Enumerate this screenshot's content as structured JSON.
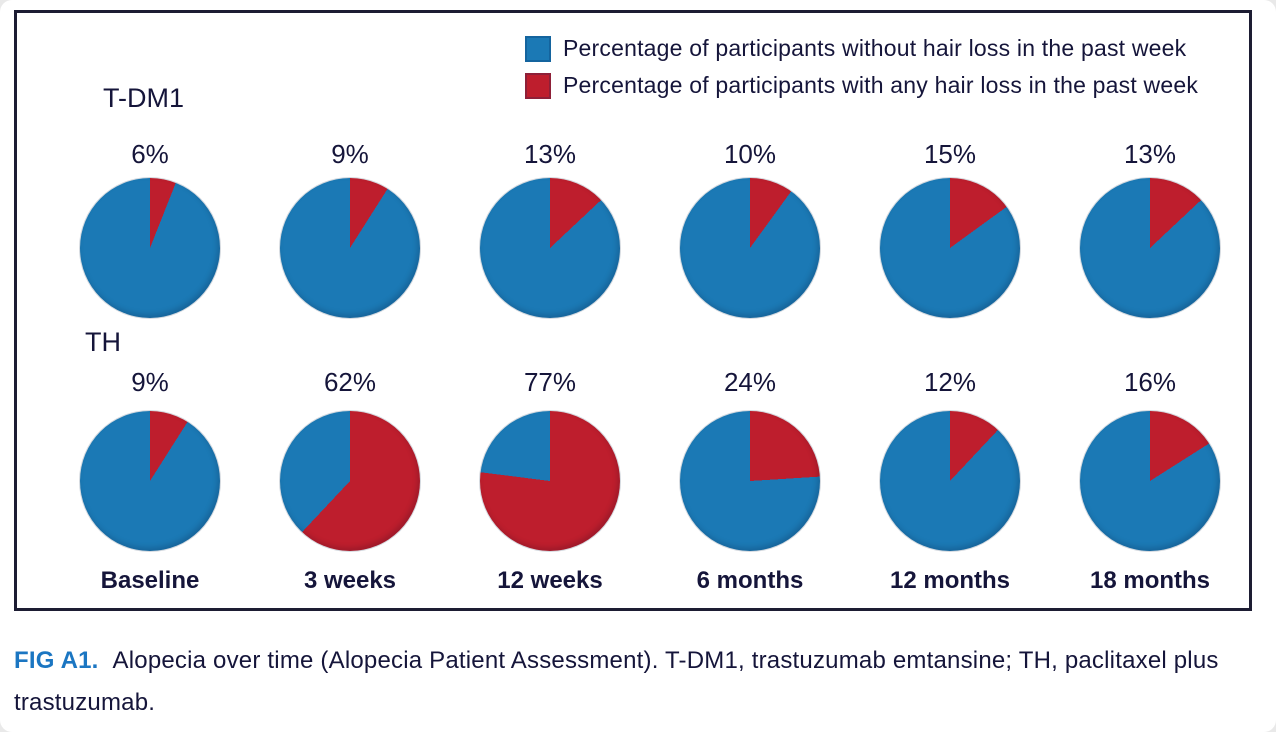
{
  "colors": {
    "without_hair_loss": "#1b79b5",
    "with_hair_loss": "#be1e2d",
    "text": "#15153a",
    "frame_border": "#1d1d33",
    "caption_tag": "#1b76c2"
  },
  "legend": {
    "items": [
      {
        "icon": "blue-swatch-icon",
        "color": "#1b79b5",
        "label": "Percentage of participants without hair loss in the past week"
      },
      {
        "icon": "red-swatch-icon",
        "color": "#be1e2d",
        "label": "Percentage of participants with any hair loss in the past week"
      }
    ]
  },
  "chart_data": {
    "type": "pie",
    "description": "Two rows of six pie charts; red slice starts at 12 o'clock and sweeps clockwise, remainder blue",
    "categories": [
      "Baseline",
      "3 weeks",
      "12 weeks",
      "6 months",
      "12 months",
      "18 months"
    ],
    "series": [
      {
        "name": "T-DM1",
        "values": [
          6,
          9,
          13,
          10,
          15,
          13
        ],
        "value_labels": [
          "6%",
          "9%",
          "13%",
          "10%",
          "15%",
          "13%"
        ]
      },
      {
        "name": "TH",
        "values": [
          9,
          62,
          77,
          24,
          12,
          16
        ],
        "value_labels": [
          "9%",
          "62%",
          "77%",
          "24%",
          "12%",
          "16%"
        ]
      }
    ],
    "legend_entries": [
      "Percentage of participants without hair loss in the past week",
      "Percentage of participants with any hair loss in the past week"
    ],
    "legend_position": "top-right",
    "slice_colors": {
      "with_hair_loss": "#be1e2d",
      "without_hair_loss": "#1b79b5"
    }
  },
  "caption": {
    "tag": "FIG A1.",
    "text": "Alopecia over time (Alopecia Patient Assessment). T-DM1, trastuzumab emtansine; TH, paclitaxel plus trastuzumab."
  }
}
